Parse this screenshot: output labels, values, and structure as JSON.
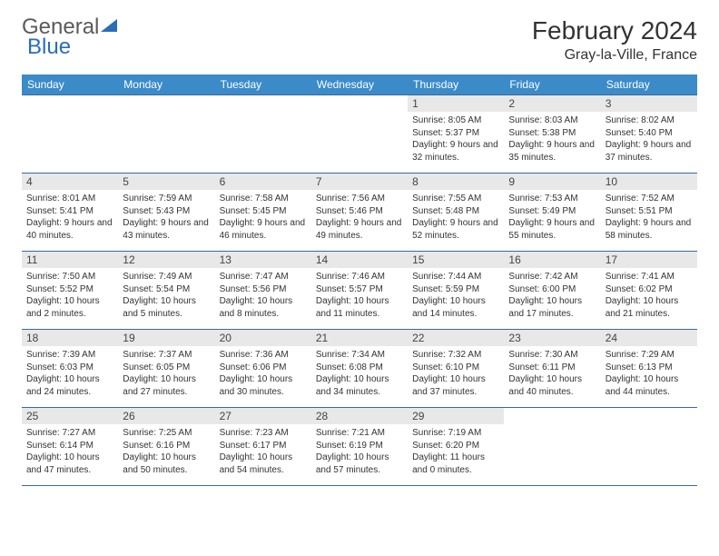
{
  "logo": {
    "part1": "General",
    "part2": "Blue"
  },
  "title": "February 2024",
  "location": "Gray-la-Ville, France",
  "weekdays": [
    "Sunday",
    "Monday",
    "Tuesday",
    "Wednesday",
    "Thursday",
    "Friday",
    "Saturday"
  ],
  "colors": {
    "header_bg": "#3b8bc9",
    "header_text": "#ffffff",
    "daynum_bg": "#e8e8e8",
    "row_divider": "#3b6a99",
    "logo_accent": "#2a6db8",
    "logo_gray": "#5a5a5a"
  },
  "layout": {
    "first_weekday_index": 4,
    "days_in_month": 29,
    "rows": 5,
    "cols": 7
  },
  "days": {
    "1": {
      "sunrise": "8:05 AM",
      "sunset": "5:37 PM",
      "daylight": "9 hours and 32 minutes."
    },
    "2": {
      "sunrise": "8:03 AM",
      "sunset": "5:38 PM",
      "daylight": "9 hours and 35 minutes."
    },
    "3": {
      "sunrise": "8:02 AM",
      "sunset": "5:40 PM",
      "daylight": "9 hours and 37 minutes."
    },
    "4": {
      "sunrise": "8:01 AM",
      "sunset": "5:41 PM",
      "daylight": "9 hours and 40 minutes."
    },
    "5": {
      "sunrise": "7:59 AM",
      "sunset": "5:43 PM",
      "daylight": "9 hours and 43 minutes."
    },
    "6": {
      "sunrise": "7:58 AM",
      "sunset": "5:45 PM",
      "daylight": "9 hours and 46 minutes."
    },
    "7": {
      "sunrise": "7:56 AM",
      "sunset": "5:46 PM",
      "daylight": "9 hours and 49 minutes."
    },
    "8": {
      "sunrise": "7:55 AM",
      "sunset": "5:48 PM",
      "daylight": "9 hours and 52 minutes."
    },
    "9": {
      "sunrise": "7:53 AM",
      "sunset": "5:49 PM",
      "daylight": "9 hours and 55 minutes."
    },
    "10": {
      "sunrise": "7:52 AM",
      "sunset": "5:51 PM",
      "daylight": "9 hours and 58 minutes."
    },
    "11": {
      "sunrise": "7:50 AM",
      "sunset": "5:52 PM",
      "daylight": "10 hours and 2 minutes."
    },
    "12": {
      "sunrise": "7:49 AM",
      "sunset": "5:54 PM",
      "daylight": "10 hours and 5 minutes."
    },
    "13": {
      "sunrise": "7:47 AM",
      "sunset": "5:56 PM",
      "daylight": "10 hours and 8 minutes."
    },
    "14": {
      "sunrise": "7:46 AM",
      "sunset": "5:57 PM",
      "daylight": "10 hours and 11 minutes."
    },
    "15": {
      "sunrise": "7:44 AM",
      "sunset": "5:59 PM",
      "daylight": "10 hours and 14 minutes."
    },
    "16": {
      "sunrise": "7:42 AM",
      "sunset": "6:00 PM",
      "daylight": "10 hours and 17 minutes."
    },
    "17": {
      "sunrise": "7:41 AM",
      "sunset": "6:02 PM",
      "daylight": "10 hours and 21 minutes."
    },
    "18": {
      "sunrise": "7:39 AM",
      "sunset": "6:03 PM",
      "daylight": "10 hours and 24 minutes."
    },
    "19": {
      "sunrise": "7:37 AM",
      "sunset": "6:05 PM",
      "daylight": "10 hours and 27 minutes."
    },
    "20": {
      "sunrise": "7:36 AM",
      "sunset": "6:06 PM",
      "daylight": "10 hours and 30 minutes."
    },
    "21": {
      "sunrise": "7:34 AM",
      "sunset": "6:08 PM",
      "daylight": "10 hours and 34 minutes."
    },
    "22": {
      "sunrise": "7:32 AM",
      "sunset": "6:10 PM",
      "daylight": "10 hours and 37 minutes."
    },
    "23": {
      "sunrise": "7:30 AM",
      "sunset": "6:11 PM",
      "daylight": "10 hours and 40 minutes."
    },
    "24": {
      "sunrise": "7:29 AM",
      "sunset": "6:13 PM",
      "daylight": "10 hours and 44 minutes."
    },
    "25": {
      "sunrise": "7:27 AM",
      "sunset": "6:14 PM",
      "daylight": "10 hours and 47 minutes."
    },
    "26": {
      "sunrise": "7:25 AM",
      "sunset": "6:16 PM",
      "daylight": "10 hours and 50 minutes."
    },
    "27": {
      "sunrise": "7:23 AM",
      "sunset": "6:17 PM",
      "daylight": "10 hours and 54 minutes."
    },
    "28": {
      "sunrise": "7:21 AM",
      "sunset": "6:19 PM",
      "daylight": "10 hours and 57 minutes."
    },
    "29": {
      "sunrise": "7:19 AM",
      "sunset": "6:20 PM",
      "daylight": "11 hours and 0 minutes."
    }
  },
  "labels": {
    "sunrise": "Sunrise:",
    "sunset": "Sunset:",
    "daylight": "Daylight:"
  }
}
